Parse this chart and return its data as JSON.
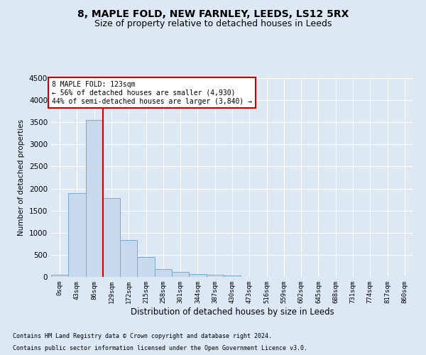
{
  "title": "8, MAPLE FOLD, NEW FARNLEY, LEEDS, LS12 5RX",
  "subtitle": "Size of property relative to detached houses in Leeds",
  "xlabel": "Distribution of detached houses by size in Leeds",
  "ylabel": "Number of detached properties",
  "footnote1": "Contains HM Land Registry data © Crown copyright and database right 2024.",
  "footnote2": "Contains public sector information licensed under the Open Government Licence v3.0.",
  "bar_labels": [
    "0sqm",
    "43sqm",
    "86sqm",
    "129sqm",
    "172sqm",
    "215sqm",
    "258sqm",
    "301sqm",
    "344sqm",
    "387sqm",
    "430sqm",
    "473sqm",
    "516sqm",
    "559sqm",
    "602sqm",
    "645sqm",
    "688sqm",
    "731sqm",
    "774sqm",
    "817sqm",
    "860sqm"
  ],
  "bar_values": [
    50,
    1900,
    3550,
    1780,
    840,
    450,
    180,
    110,
    65,
    50,
    30,
    0,
    0,
    0,
    0,
    0,
    0,
    0,
    0,
    0,
    0
  ],
  "bar_color": "#c9d9ed",
  "bar_edge_color": "#7da8cd",
  "vline_x": 3,
  "vline_color": "#cc0000",
  "annotation_text": "8 MAPLE FOLD: 123sqm\n← 56% of detached houses are smaller (4,930)\n44% of semi-detached houses are larger (3,840) →",
  "annotation_box_color": "#ffffff",
  "annotation_box_edge_color": "#cc0000",
  "ylim": [
    0,
    4500
  ],
  "yticks": [
    0,
    500,
    1000,
    1500,
    2000,
    2500,
    3000,
    3500,
    4000,
    4500
  ],
  "background_color": "#dce9f5",
  "plot_bg_color": "#dce9f5",
  "title_fontsize": 10,
  "subtitle_fontsize": 9,
  "grid_color": "#ffffff",
  "figsize": [
    6.0,
    5.0
  ],
  "dpi": 100
}
